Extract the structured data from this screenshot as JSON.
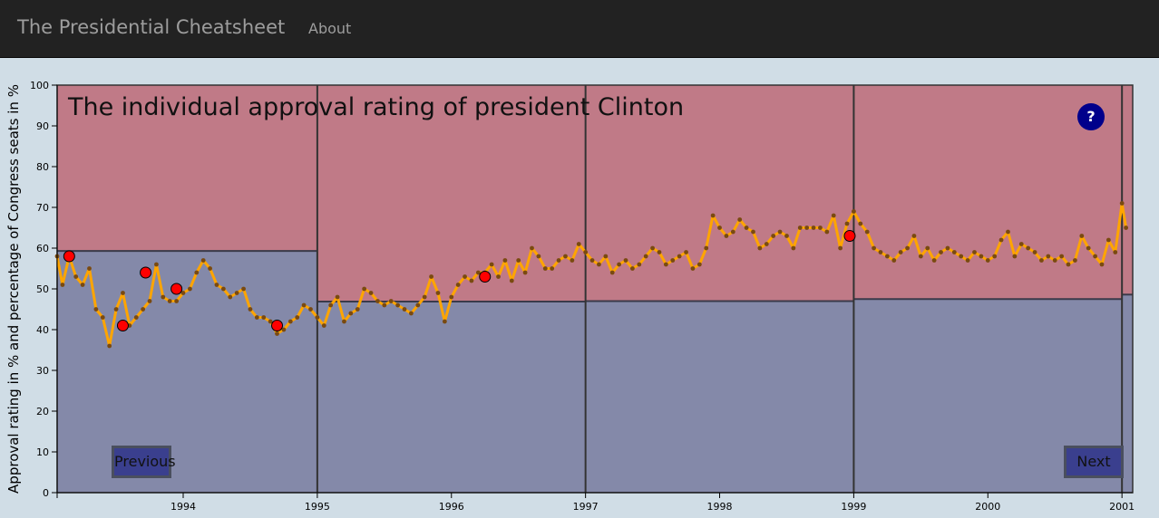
{
  "navbar": {
    "brand": "The Presidential Cheatsheet",
    "about_label": "About"
  },
  "help": {
    "label": "?"
  },
  "pager": {
    "previous_label": "Previous",
    "next_label": "Next"
  },
  "colors": {
    "majority_region": "#c07a87",
    "minority_region": "#8489a9",
    "approval_line": "#ffa500",
    "approval_point": "#7a4a10",
    "event_marker": "#ff0000",
    "help_button": "#00008b"
  },
  "chart_data": {
    "type": "line",
    "title": "The individual approval rating of president Clinton",
    "xlabel": "",
    "ylabel": "Approval rating in % and percentage of Congress seats in %",
    "xlim": [
      1993.06,
      2001.05
    ],
    "ylim": [
      0,
      100
    ],
    "x_ticks": [
      "1994",
      "1995",
      "1996",
      "1997",
      "1998",
      "1999",
      "2000",
      "2001"
    ],
    "y_ticks": [
      "0",
      "10",
      "20",
      "30",
      "40",
      "50",
      "60",
      "70",
      "80",
      "90",
      "100"
    ],
    "grid": false,
    "series": [
      {
        "values_kind": "approval",
        "x": [
          1993.06,
          1993.1,
          1993.15,
          1993.2,
          1993.25,
          1993.3,
          1993.35,
          1993.4,
          1993.45,
          1993.5,
          1993.55,
          1993.6,
          1993.65,
          1993.7,
          1993.75,
          1993.8,
          1993.85,
          1993.9,
          1993.95,
          1994.0,
          1994.05,
          1994.1,
          1994.15,
          1994.2,
          1994.25,
          1994.3,
          1994.35,
          1994.4,
          1994.45,
          1994.5,
          1994.55,
          1994.6,
          1994.65,
          1994.7,
          1994.75,
          1994.8,
          1994.85,
          1994.9,
          1994.95,
          1995.0,
          1995.05,
          1995.1,
          1995.15,
          1995.2,
          1995.25,
          1995.3,
          1995.35,
          1995.4,
          1995.45,
          1995.5,
          1995.55,
          1995.6,
          1995.65,
          1995.7,
          1995.75,
          1995.8,
          1995.85,
          1995.9,
          1995.95,
          1996.0,
          1996.05,
          1996.1,
          1996.15,
          1996.2,
          1996.25,
          1996.3,
          1996.35,
          1996.4,
          1996.45,
          1996.5,
          1996.55,
          1996.6,
          1996.65,
          1996.7,
          1996.75,
          1996.8,
          1996.85,
          1996.9,
          1996.95,
          1997.0,
          1997.05,
          1997.1,
          1997.15,
          1997.2,
          1997.25,
          1997.3,
          1997.35,
          1997.4,
          1997.45,
          1997.5,
          1997.55,
          1997.6,
          1997.65,
          1997.7,
          1997.75,
          1997.8,
          1997.85,
          1997.9,
          1997.95,
          1998.0,
          1998.05,
          1998.1,
          1998.15,
          1998.2,
          1998.25,
          1998.3,
          1998.35,
          1998.4,
          1998.45,
          1998.5,
          1998.55,
          1998.6,
          1998.65,
          1998.7,
          1998.75,
          1998.8,
          1998.85,
          1998.9,
          1998.95,
          1999.0,
          1999.05,
          1999.1,
          1999.15,
          1999.2,
          1999.25,
          1999.3,
          1999.35,
          1999.4,
          1999.45,
          1999.5,
          1999.55,
          1999.6,
          1999.65,
          1999.7,
          1999.75,
          1999.8,
          1999.85,
          1999.9,
          1999.95,
          2000.0,
          2000.05,
          2000.1,
          2000.15,
          2000.2,
          2000.25,
          2000.3,
          2000.35,
          2000.4,
          2000.45,
          2000.5,
          2000.55,
          2000.6,
          2000.65,
          2000.7,
          2000.75,
          2000.8,
          2000.85,
          2000.9,
          2000.95,
          2001.0,
          2001.03
        ],
        "values": [
          58,
          51,
          58,
          53,
          51,
          55,
          45,
          43,
          36,
          45,
          49,
          41,
          43,
          45,
          47,
          56,
          48,
          47,
          47,
          49,
          50,
          54,
          57,
          55,
          51,
          50,
          48,
          49,
          50,
          45,
          43,
          43,
          42,
          39,
          40,
          42,
          43,
          46,
          45,
          43,
          41,
          46,
          48,
          42,
          44,
          45,
          50,
          49,
          47,
          46,
          47,
          46,
          45,
          44,
          46,
          48,
          53,
          49,
          42,
          48,
          51,
          53,
          52,
          54,
          54,
          56,
          53,
          57,
          52,
          57,
          54,
          60,
          58,
          55,
          55,
          57,
          58,
          57,
          61,
          59,
          57,
          56,
          58,
          54,
          56,
          57,
          55,
          56,
          58,
          60,
          59,
          56,
          57,
          58,
          59,
          55,
          56,
          60,
          68,
          65,
          63,
          64,
          67,
          65,
          64,
          60,
          61,
          63,
          64,
          63,
          60,
          65,
          65,
          65,
          65,
          64,
          68,
          60,
          66,
          69,
          66,
          64,
          60,
          59,
          58,
          57,
          59,
          60,
          63,
          58,
          60,
          57,
          59,
          60,
          59,
          58,
          57,
          59,
          58,
          57,
          58,
          62,
          64,
          58,
          61,
          60,
          59,
          57,
          58,
          57,
          58,
          56,
          57,
          63,
          60,
          58,
          56,
          62,
          59,
          71,
          65
        ]
      },
      {
        "values_kind": "congress_seats",
        "x": [
          1993.06,
          1995.0,
          1997.0,
          1999.0,
          2001.0
        ],
        "values": [
          59.3,
          46.9,
          47.0,
          47.5,
          48.6
        ]
      }
    ],
    "event_markers": {
      "x": [
        1993.15,
        1993.55,
        1993.72,
        1993.95,
        1994.7,
        1996.25,
        1998.97
      ],
      "values": [
        58,
        41,
        54,
        50,
        41,
        53,
        63
      ]
    },
    "period_boundaries": [
      1995.0,
      1997.0,
      1999.0,
      2001.0
    ],
    "last_congress_share": 49
  }
}
